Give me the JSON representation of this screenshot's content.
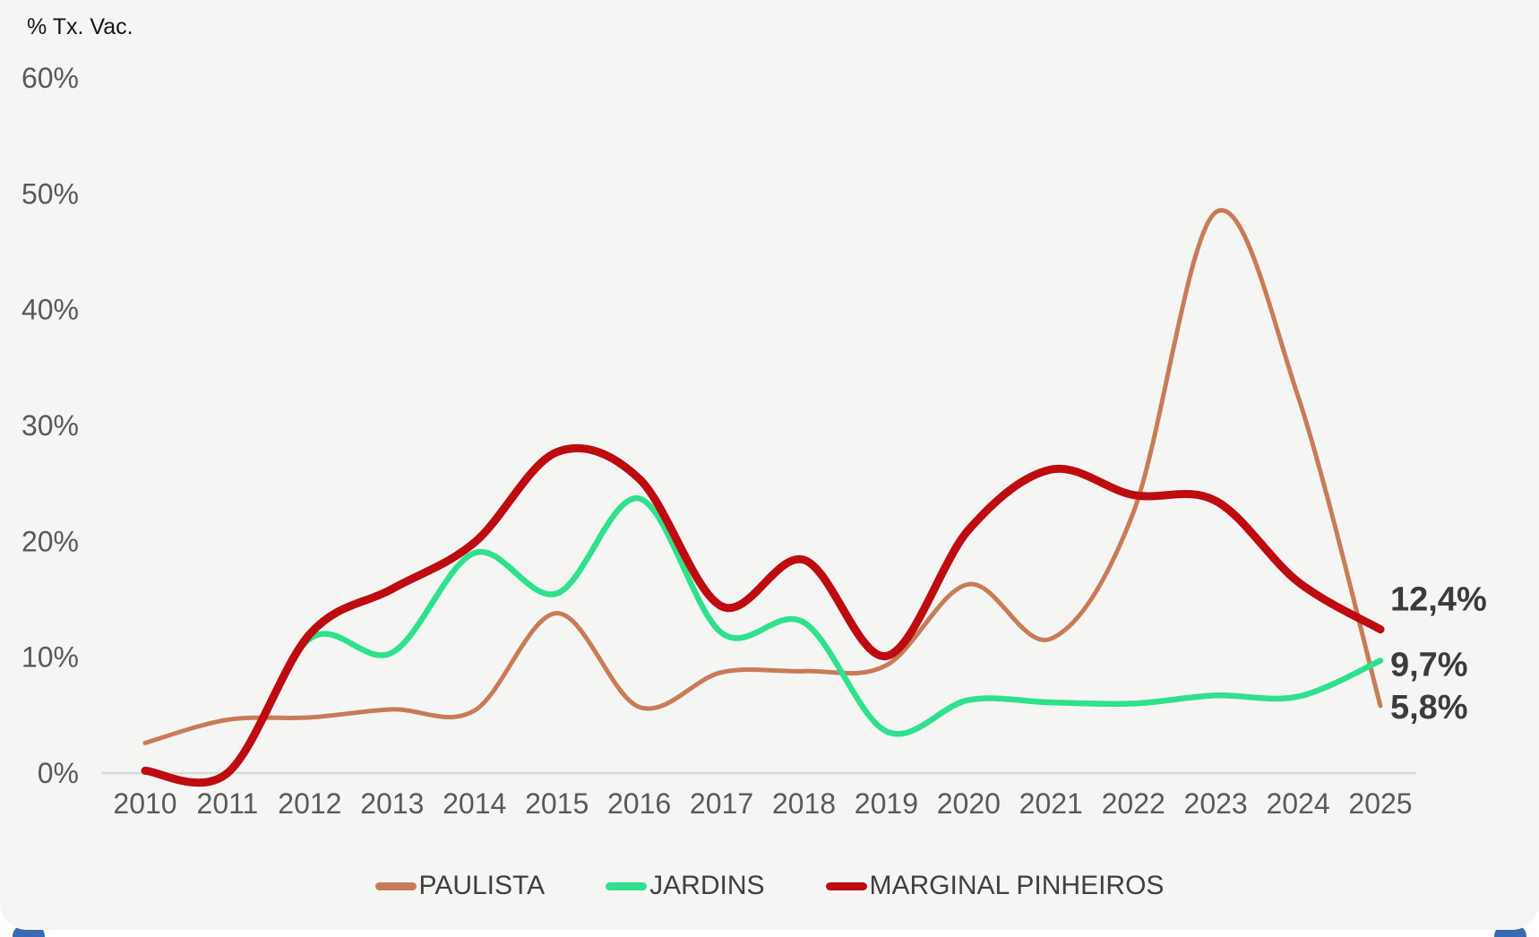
{
  "page": {
    "background": "#ffffff",
    "card_background": "#f5f5f3",
    "bottom_accent_color": "#3a6bb0"
  },
  "chart": {
    "axis_title": "% Tx. Vac.",
    "y_tick_labels": [
      "60%",
      "50%",
      "40%",
      "30%",
      "20%",
      "10%",
      "0%"
    ],
    "x_tick_labels": [
      "2010",
      "2011",
      "2012",
      "2013",
      "2014",
      "2015",
      "2016",
      "2017",
      "2018",
      "2019",
      "2020",
      "2021",
      "2022",
      "2023",
      "2024",
      "2025"
    ],
    "axis_line_color": "#d9d9d9",
    "tick_label_color": "#595959",
    "end_label_color": "#3b3b3b"
  },
  "chart_data": {
    "type": "line",
    "title": "",
    "ylabel": "% Tx. Vac.",
    "x": [
      2010,
      2011,
      2012,
      2013,
      2014,
      2015,
      2016,
      2017,
      2018,
      2019,
      2020,
      2021,
      2022,
      2023,
      2024,
      2025
    ],
    "ylim": [
      0,
      60
    ],
    "y_tick_step": 10,
    "y_tick_format": "percent",
    "grid": false,
    "smooth": true,
    "legend_position": "bottom",
    "series": [
      {
        "name": "PAULISTA",
        "color": "#c97b58",
        "stroke_width": 5,
        "end_label": "5,8%",
        "values": [
          2.6,
          4.6,
          4.8,
          5.5,
          5.4,
          13.8,
          5.7,
          8.7,
          8.8,
          9.3,
          16.3,
          11.6,
          22.5,
          48.4,
          32.5,
          5.8
        ]
      },
      {
        "name": "JARDINS",
        "color": "#2fe08c",
        "stroke_width": 6.5,
        "end_label": "9,7%",
        "values": [
          0.3,
          0.0,
          11.6,
          10.4,
          19.0,
          15.5,
          23.7,
          12.1,
          13.0,
          3.6,
          6.3,
          6.1,
          6.0,
          6.7,
          6.6,
          9.7
        ]
      },
      {
        "name": "MARGINAL PINHEIROS",
        "color": "#be0b10",
        "stroke_width": 9,
        "end_label": "12,4%",
        "values": [
          0.2,
          0.0,
          12.0,
          15.9,
          19.9,
          27.7,
          25.4,
          14.4,
          18.4,
          10.1,
          21.0,
          26.2,
          24.0,
          23.5,
          16.5,
          12.4
        ]
      }
    ]
  }
}
